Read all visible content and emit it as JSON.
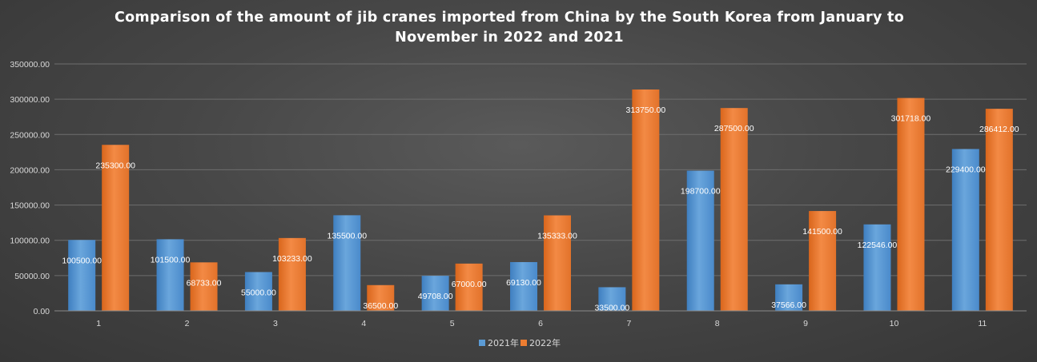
{
  "chart_data": {
    "type": "bar",
    "title": "Comparison of the amount of jib cranes imported from China by the South Korea from January to November in 2022 and 2021",
    "title_lines": [
      "Comparison of the amount of jib cranes imported from China by the South Korea from January to",
      "November in 2022 and 2021"
    ],
    "categories": [
      "1",
      "2",
      "3",
      "4",
      "5",
      "6",
      "7",
      "8",
      "9",
      "10",
      "11"
    ],
    "series": [
      {
        "name": "2021年",
        "color": "#5b9bd5",
        "values": [
          100500,
          101500,
          55000,
          135500,
          49708,
          69130,
          33500,
          198700,
          37566,
          122546,
          229400
        ],
        "labels": [
          "100500.00",
          "101500.00",
          "55000.00",
          "135500.00",
          "49708.00",
          "69130.00",
          "33500.00",
          "198700.00",
          "37566.00",
          "122546.00",
          "229400.00"
        ]
      },
      {
        "name": "2022年",
        "color": "#ed7d31",
        "values": [
          235300,
          68733,
          103233,
          36500,
          67000,
          135333,
          313750,
          287500,
          141500,
          301718,
          286412
        ],
        "labels": [
          "235300.00",
          "68733.00",
          "103233.00",
          "36500.00",
          "67000.00",
          "135333.00",
          "313750.00",
          "287500.00",
          "141500.00",
          "301718.00",
          "286412.00"
        ]
      }
    ],
    "ylim": [
      0,
      350000
    ],
    "yticks": [
      0,
      50000,
      100000,
      150000,
      200000,
      250000,
      300000,
      350000
    ],
    "ytick_labels": [
      "0.00",
      "50000.00",
      "100000.00",
      "150000.00",
      "200000.00",
      "250000.00",
      "300000.00",
      "350000.00"
    ],
    "grid": true,
    "legend_position": "bottom"
  }
}
